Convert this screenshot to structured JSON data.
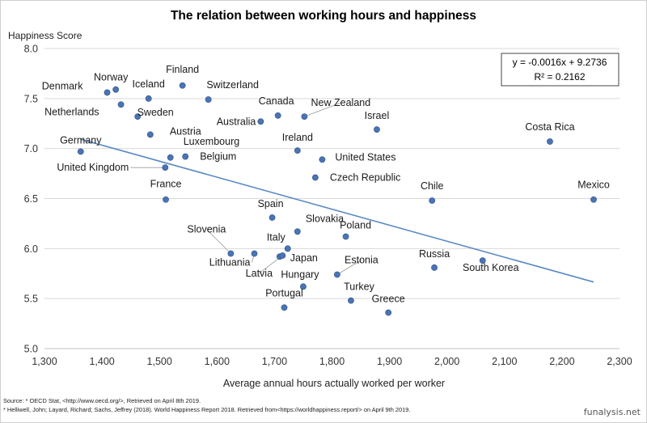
{
  "chart_data": {
    "type": "scatter",
    "title": "The relation between working hours and happiness",
    "xlabel": "Average annual hours actually worked per worker",
    "ylabel": "Happiness Score",
    "xlim": [
      1300,
      2300
    ],
    "ylim": [
      5.0,
      8.0
    ],
    "x_ticks": [
      "1,300",
      "1,400",
      "1,500",
      "1,600",
      "1,700",
      "1,800",
      "1,900",
      "2,000",
      "2,100",
      "2,200",
      "2,300"
    ],
    "y_ticks": [
      "5.0",
      "5.5",
      "6.0",
      "6.5",
      "7.0",
      "7.5",
      "8.0"
    ],
    "grid": "horizontal",
    "points": [
      {
        "label": "Norway",
        "x": 1424,
        "y": 7.59
      },
      {
        "label": "Denmark",
        "x": 1409,
        "y": 7.56
      },
      {
        "label": "Iceland",
        "x": 1481,
        "y": 7.5
      },
      {
        "label": "Finland",
        "x": 1540,
        "y": 7.63
      },
      {
        "label": "Switzerland",
        "x": 1585,
        "y": 7.49
      },
      {
        "label": "Netherlands",
        "x": 1433,
        "y": 7.44
      },
      {
        "label": "Sweden",
        "x": 1462,
        "y": 7.32
      },
      {
        "label": "Canada",
        "x": 1706,
        "y": 7.33
      },
      {
        "label": "New Zealand",
        "x": 1752,
        "y": 7.32
      },
      {
        "label": "Australia",
        "x": 1676,
        "y": 7.27
      },
      {
        "label": "Austria",
        "x": 1484,
        "y": 7.14
      },
      {
        "label": "Israel",
        "x": 1878,
        "y": 7.19
      },
      {
        "label": "Costa Rica",
        "x": 2179,
        "y": 7.07
      },
      {
        "label": "Germany",
        "x": 1363,
        "y": 6.97
      },
      {
        "label": "Ireland",
        "x": 1740,
        "y": 6.98
      },
      {
        "label": "Luxembourg",
        "x": 1519,
        "y": 6.91
      },
      {
        "label": "Belgium",
        "x": 1545,
        "y": 6.92
      },
      {
        "label": "United States",
        "x": 1783,
        "y": 6.89
      },
      {
        "label": "United Kingdom",
        "x": 1510,
        "y": 6.81
      },
      {
        "label": "Czech Republic",
        "x": 1771,
        "y": 6.71
      },
      {
        "label": "Chile",
        "x": 1974,
        "y": 6.48
      },
      {
        "label": "Mexico",
        "x": 2255,
        "y": 6.49
      },
      {
        "label": "France",
        "x": 1511,
        "y": 6.49
      },
      {
        "label": "Spain",
        "x": 1696,
        "y": 6.31
      },
      {
        "label": "Slovakia",
        "x": 1740,
        "y": 6.17
      },
      {
        "label": "Poland",
        "x": 1824,
        "y": 6.12
      },
      {
        "label": "Italy",
        "x": 1723,
        "y": 6.0
      },
      {
        "label": "Slovenia",
        "x": 1624,
        "y": 5.95
      },
      {
        "label": "Lithuania",
        "x": 1665,
        "y": 5.95
      },
      {
        "label": "Japan",
        "x": 1709,
        "y": 5.92
      },
      {
        "label": "Latvia",
        "x": 1714,
        "y": 5.93
      },
      {
        "label": "Russia",
        "x": 1978,
        "y": 5.81
      },
      {
        "label": "South Korea",
        "x": 2062,
        "y": 5.88
      },
      {
        "label": "Estonia",
        "x": 1809,
        "y": 5.74
      },
      {
        "label": "Hungary",
        "x": 1750,
        "y": 5.62
      },
      {
        "label": "Turkey",
        "x": 1833,
        "y": 5.48
      },
      {
        "label": "Portugal",
        "x": 1717,
        "y": 5.41
      },
      {
        "label": "Greece",
        "x": 1898,
        "y": 5.36
      }
    ],
    "trendline": {
      "slope": -0.0016,
      "intercept": 9.2736,
      "x_range": [
        1363,
        2255
      ]
    },
    "equation": "y = -0.0016x + 9.2736",
    "r_squared": "R² = 0.2162",
    "colors": {
      "point": "#4a74b5",
      "trendline": "#5b8ac6",
      "grid": "#d9d9d9"
    }
  },
  "sources": {
    "line1": "Source: * OECD Stat, <http://www.oecd.org/>, Retrieved on April 8th 2019.",
    "line2": "* Helliwell, John; Layard, Richard; Sachs, Jeffrey (2018). World Happiness Report 2018. Retrieved from<https://worldhappiness.report/> on April 9th 2019."
  },
  "brand": "funalysis.net"
}
